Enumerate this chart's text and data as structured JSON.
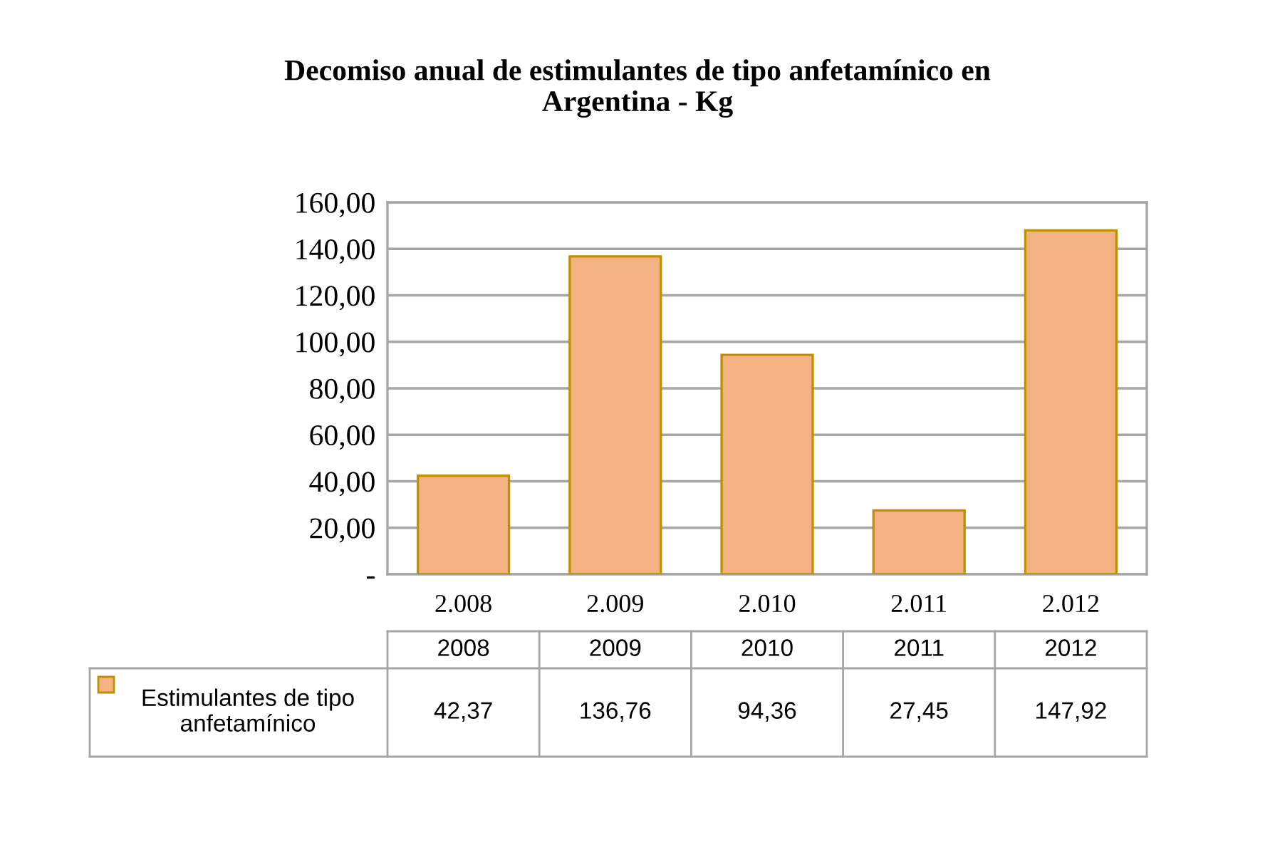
{
  "chart_data": {
    "type": "bar",
    "title": "Decomiso anual de estimulantes de tipo anfetamínico en Argentina - Kg",
    "categories": [
      "2.008",
      "2.009",
      "2.010",
      "2.011",
      "2.012"
    ],
    "series": [
      {
        "name": "Estimulantes de tipo anfetamínico",
        "color": "#f4b183",
        "values": [
          42.37,
          136.76,
          94.36,
          27.45,
          147.92
        ],
        "value_labels": [
          "42,37",
          "136,76",
          "94,36",
          "27,45",
          "147,92"
        ]
      }
    ],
    "annotations": [
      "2008",
      "2009",
      "2010",
      "2011",
      "2012"
    ],
    "ylim": [
      0,
      160
    ],
    "yticks": [
      {
        "value": 0,
        "label": "-"
      },
      {
        "value": 20,
        "label": "20,00"
      },
      {
        "value": 40,
        "label": "40,00"
      },
      {
        "value": 60,
        "label": "60,00"
      },
      {
        "value": 80,
        "label": "80,00"
      },
      {
        "value": 100,
        "label": "100,00"
      },
      {
        "value": 120,
        "label": "120,00"
      },
      {
        "value": 140,
        "label": "140,00"
      },
      {
        "value": 160,
        "label": "160,00"
      }
    ],
    "grid": "y",
    "legend": "bottom"
  }
}
